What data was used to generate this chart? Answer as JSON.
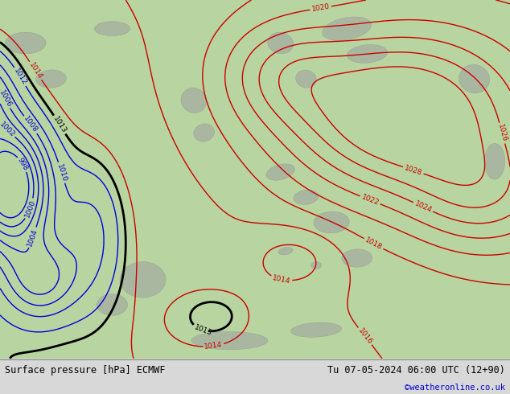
{
  "title_left": "Surface pressure [hPa] ECMWF",
  "title_right": "Tu 07-05-2024 06:00 UTC (12+90)",
  "watermark": "©weatheronline.co.uk",
  "watermark_color": "#0000cc",
  "bg_color": "#b8d4a0",
  "footer_bg": "#d8d8d8",
  "footer_text_color": "#000000",
  "fig_width": 6.34,
  "fig_height": 4.9,
  "dpi": 100
}
